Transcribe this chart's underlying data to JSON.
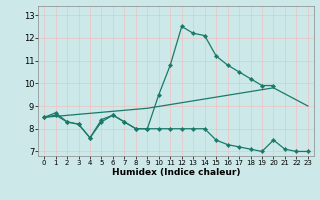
{
  "xlabel": "Humidex (Indice chaleur)",
  "background_color": "#cce8e8",
  "grid_color": "#e8c8c8",
  "line_color": "#1a7a6a",
  "xlim": [
    -0.5,
    23.5
  ],
  "ylim": [
    6.8,
    13.4
  ],
  "xticks": [
    0,
    1,
    2,
    3,
    4,
    5,
    6,
    7,
    8,
    9,
    10,
    11,
    12,
    13,
    14,
    15,
    16,
    17,
    18,
    19,
    20,
    21,
    22,
    23
  ],
  "yticks": [
    7,
    8,
    9,
    10,
    11,
    12,
    13
  ],
  "line1_x": [
    0,
    1,
    2,
    3,
    4,
    5,
    6,
    7,
    8,
    9,
    10,
    11,
    12,
    13,
    14,
    15,
    16,
    17,
    18,
    19,
    20
  ],
  "line1_y": [
    8.5,
    8.7,
    8.3,
    8.2,
    7.6,
    8.4,
    8.6,
    8.3,
    8.0,
    8.0,
    9.5,
    10.8,
    12.5,
    12.2,
    12.1,
    11.2,
    10.8,
    10.5,
    10.2,
    9.9,
    9.9
  ],
  "line2_x": [
    0,
    1,
    2,
    3,
    4,
    5,
    6,
    7,
    8,
    9,
    10,
    11,
    12,
    13,
    14,
    15,
    16,
    17,
    18,
    19,
    20,
    21,
    22,
    23
  ],
  "line2_y": [
    8.5,
    8.6,
    8.3,
    8.2,
    7.6,
    8.3,
    8.6,
    8.3,
    8.0,
    8.0,
    8.0,
    8.0,
    8.0,
    8.0,
    8.0,
    7.5,
    7.3,
    7.2,
    7.1,
    7.0,
    7.5,
    7.1,
    7.0,
    7.0
  ],
  "line3_x": [
    0,
    9,
    20,
    23
  ],
  "line3_y": [
    8.5,
    8.9,
    9.8,
    9.0
  ]
}
